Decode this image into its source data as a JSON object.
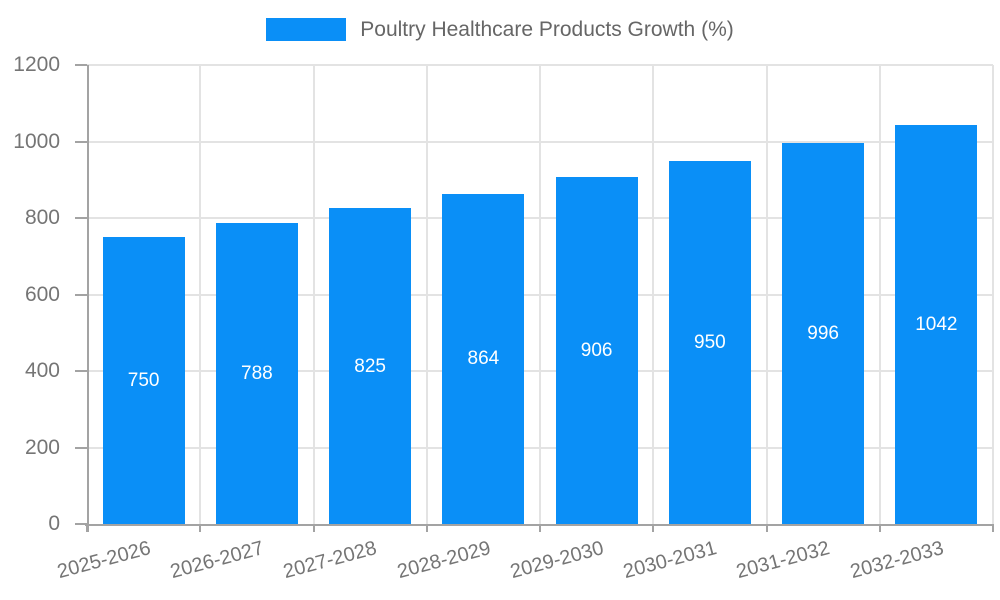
{
  "chart_data": {
    "type": "bar",
    "title": "",
    "legend": {
      "label": "Poultry Healthcare Products Growth (%)",
      "position": "top"
    },
    "categories": [
      "2025-2026",
      "2026-2027",
      "2027-2028",
      "2028-2029",
      "2029-2030",
      "2030-2031",
      "2031-2032",
      "2032-2033"
    ],
    "values": [
      750,
      788,
      825,
      864,
      906,
      950,
      996,
      1042
    ],
    "xlabel": "",
    "ylabel": "",
    "ylim": [
      0,
      1200
    ],
    "yticks": [
      0,
      200,
      400,
      600,
      800,
      1000,
      1200
    ],
    "grid": true,
    "x_tick_rotation_deg": -15,
    "colors": {
      "bar": "#0a8ff7",
      "value_label": "#ffffff",
      "axis": "#a3a3a3",
      "grid": "#e3e3e3",
      "tick_label": "#757575",
      "legend_text": "#666666",
      "background": "#ffffff"
    }
  }
}
